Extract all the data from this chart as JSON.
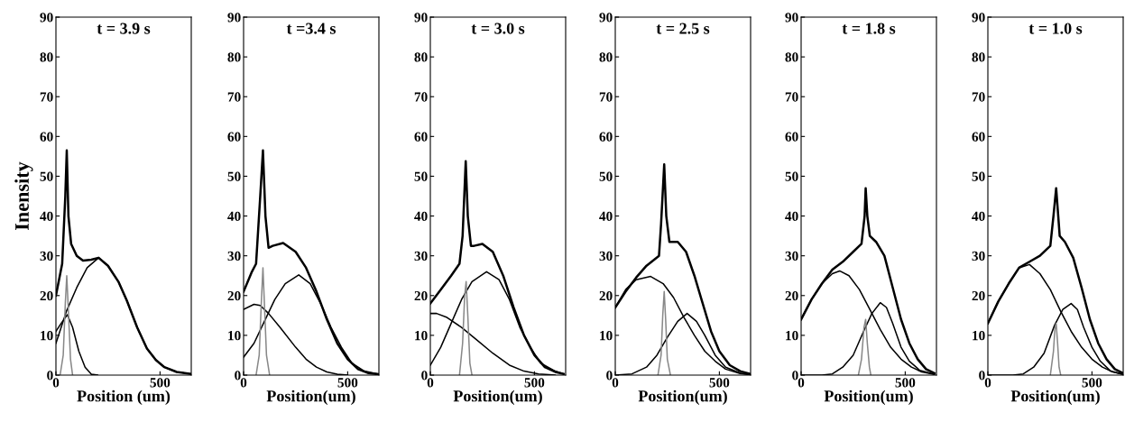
{
  "chart_data": [
    {
      "type": "line",
      "title": "t = 3.9 s",
      "xlabel": "Position (um)",
      "ylabel": "Inensity",
      "xlim": [
        0,
        650
      ],
      "xticks": [
        0,
        500
      ],
      "ylim": [
        0,
        90
      ],
      "yticks": [
        0,
        10,
        20,
        30,
        40,
        50,
        60,
        70,
        80,
        90
      ],
      "grid": false,
      "series": [
        {
          "color": "#000000",
          "x": [
            0,
            30,
            45,
            52,
            60,
            73,
            100,
            130,
            170,
            205,
            250,
            300,
            340,
            390,
            437,
            480,
            521,
            580,
            650
          ],
          "values": [
            20,
            28,
            45,
            56.5,
            40,
            33,
            30,
            28.8,
            29,
            29.5,
            27.5,
            23.5,
            18.8,
            12,
            6.7,
            3.8,
            2,
            0.8,
            0.3
          ]
        },
        {
          "color": "#000000",
          "x": [
            0,
            25,
            55,
            80,
            110,
            140,
            170,
            200
          ],
          "values": [
            11,
            13,
            15.2,
            12,
            6,
            2,
            0.2,
            0
          ]
        },
        {
          "color": "#000000",
          "x": [
            0,
            50,
            100,
            150,
            205,
            250,
            300,
            340,
            390,
            437,
            480,
            521,
            580,
            650
          ],
          "values": [
            8,
            16,
            22,
            27,
            29.5,
            27.5,
            23.5,
            18.8,
            12,
            6.7,
            3.8,
            2,
            0.8,
            0.3
          ]
        },
        {
          "color": "#888888",
          "x": [
            20,
            35,
            45,
            52,
            60,
            70,
            80
          ],
          "values": [
            0,
            5,
            18,
            25,
            16,
            4,
            0
          ]
        }
      ]
    },
    {
      "type": "line",
      "title": "t =3.4 s",
      "xlabel": "Position(um)",
      "xlim": [
        0,
        650
      ],
      "xticks": [
        0,
        500
      ],
      "ylim": [
        0,
        90
      ],
      "yticks": [
        0,
        10,
        20,
        30,
        40,
        50,
        60,
        70,
        80,
        90
      ],
      "grid": false,
      "series": [
        {
          "color": "#000000",
          "x": [
            0,
            40,
            60,
            80,
            93,
            105,
            120,
            140,
            190,
            250,
            300,
            350,
            400,
            450,
            500,
            550,
            600,
            650
          ],
          "values": [
            21,
            26,
            28,
            45,
            56.5,
            40,
            32,
            32.5,
            33.2,
            31,
            27,
            21,
            14,
            8,
            4,
            1.5,
            0.5,
            0.2
          ]
        },
        {
          "color": "#000000",
          "x": [
            0,
            50,
            80,
            120,
            175,
            250,
            300,
            350,
            400,
            450,
            500
          ],
          "values": [
            16.5,
            17.8,
            17.5,
            15.5,
            12,
            7,
            4,
            2,
            0.8,
            0.2,
            0
          ]
        },
        {
          "color": "#000000",
          "x": [
            0,
            50,
            100,
            150,
            200,
            265,
            320,
            370,
            420,
            470,
            520,
            580,
            650
          ],
          "values": [
            4.5,
            8,
            13.5,
            19,
            23,
            25.2,
            23,
            18,
            12,
            7,
            3,
            1,
            0.2
          ]
        },
        {
          "color": "#888888",
          "x": [
            60,
            75,
            85,
            93,
            100,
            110,
            125
          ],
          "values": [
            0,
            5,
            18,
            27,
            18,
            5,
            0
          ]
        }
      ]
    },
    {
      "type": "line",
      "title": "t = 3.0 s",
      "xlabel": "Position(um)",
      "xlim": [
        0,
        650
      ],
      "xticks": [
        0,
        500
      ],
      "ylim": [
        0,
        90
      ],
      "yticks": [
        0,
        10,
        20,
        30,
        40,
        50,
        60,
        70,
        80,
        90
      ],
      "grid": false,
      "series": [
        {
          "color": "#000000",
          "x": [
            0,
            50,
            100,
            140,
            155,
            170,
            180,
            195,
            210,
            250,
            300,
            350,
            400,
            450,
            500,
            550,
            600,
            640
          ],
          "values": [
            18,
            21.5,
            25,
            28,
            35,
            53.8,
            40,
            32.5,
            32.5,
            33,
            31,
            25,
            17,
            10,
            5,
            2,
            0.8,
            0.3
          ]
        },
        {
          "color": "#000000",
          "x": [
            0,
            30,
            80,
            150,
            220,
            300,
            380,
            450,
            520,
            600
          ],
          "values": [
            15.5,
            15.5,
            14.5,
            12,
            9,
            5.5,
            2.5,
            1,
            0.3,
            0
          ]
        },
        {
          "color": "#000000",
          "x": [
            0,
            50,
            100,
            150,
            200,
            270,
            330,
            380,
            430,
            480,
            530,
            600,
            640
          ],
          "values": [
            2.5,
            7,
            13,
            19,
            23.5,
            26,
            24,
            19,
            12,
            7,
            3,
            1,
            0.3
          ]
        },
        {
          "color": "#888888",
          "x": [
            140,
            155,
            165,
            172,
            180,
            190,
            200
          ],
          "values": [
            0,
            8,
            20,
            23.5,
            15,
            3,
            0
          ]
        }
      ]
    },
    {
      "type": "line",
      "title": "t = 2.5 s",
      "xlabel": "Position(um)",
      "xlim": [
        0,
        650
      ],
      "xticks": [
        0,
        500
      ],
      "ylim": [
        0,
        90
      ],
      "yticks": [
        0,
        10,
        20,
        30,
        40,
        50,
        60,
        70,
        80,
        90
      ],
      "grid": false,
      "series": [
        {
          "color": "#000000",
          "x": [
            0,
            50,
            100,
            150,
            210,
            220,
            235,
            245,
            260,
            300,
            340,
            380,
            420,
            460,
            500,
            550,
            600,
            650
          ],
          "values": [
            17,
            21,
            24.5,
            27.5,
            30,
            38,
            53,
            40,
            33.5,
            33.5,
            31,
            25,
            18,
            11,
            6,
            2.5,
            1,
            0.3
          ]
        },
        {
          "color": "#000000",
          "x": [
            0,
            50,
            100,
            170,
            230,
            280,
            330,
            380,
            430,
            480,
            530,
            600,
            650
          ],
          "values": [
            17,
            21.5,
            24,
            24.8,
            23,
            19.5,
            14.5,
            10,
            6,
            3.5,
            1.5,
            0.4,
            0.1
          ]
        },
        {
          "color": "#000000",
          "x": [
            0,
            80,
            150,
            200,
            250,
            300,
            345,
            390,
            430,
            480,
            530,
            600,
            650
          ],
          "values": [
            0,
            0.3,
            2,
            5,
            9.5,
            13.5,
            15.5,
            13.5,
            10,
            5,
            2,
            0.5,
            0.1
          ]
        },
        {
          "color": "#888888",
          "x": [
            205,
            220,
            228,
            235,
            242,
            250,
            265
          ],
          "values": [
            0,
            5,
            15,
            21,
            14,
            4,
            0
          ]
        }
      ]
    },
    {
      "type": "line",
      "title": "t = 1.8 s",
      "xlabel": "Position(um)",
      "xlim": [
        0,
        650
      ],
      "xticks": [
        0,
        500
      ],
      "ylim": [
        0,
        90
      ],
      "yticks": [
        0,
        10,
        20,
        30,
        40,
        50,
        60,
        70,
        80,
        90
      ],
      "grid": false,
      "series": [
        {
          "color": "#000000",
          "x": [
            0,
            50,
            100,
            150,
            200,
            250,
            290,
            305,
            310,
            318,
            330,
            360,
            400,
            440,
            480,
            520,
            560,
            600,
            640
          ],
          "values": [
            14,
            19,
            23,
            26.5,
            28.5,
            31,
            33,
            40,
            47,
            40,
            35,
            33.5,
            30,
            22,
            14,
            8,
            4,
            1.5,
            0.5
          ]
        },
        {
          "color": "#000000",
          "x": [
            0,
            50,
            100,
            150,
            185,
            230,
            280,
            330,
            380,
            430,
            480,
            530,
            580,
            640
          ],
          "values": [
            14,
            19,
            23,
            25.5,
            26.2,
            25,
            21.5,
            16.5,
            11.5,
            7,
            4,
            2,
            0.8,
            0.2
          ]
        },
        {
          "color": "#000000",
          "x": [
            0,
            100,
            150,
            200,
            250,
            300,
            340,
            380,
            410,
            440,
            480,
            520,
            570,
            640
          ],
          "values": [
            0,
            0,
            0.3,
            2,
            5,
            11,
            15.5,
            18.2,
            17,
            13,
            7,
            3.5,
            1.2,
            0.2
          ]
        },
        {
          "color": "#888888",
          "x": [
            275,
            290,
            302,
            310,
            318,
            328,
            335
          ],
          "values": [
            0,
            4,
            12,
            14,
            8,
            2,
            0
          ]
        }
      ]
    },
    {
      "type": "line",
      "title": "t = 1.0 s",
      "xlabel": "Position(um)",
      "xlim": [
        0,
        650
      ],
      "xticks": [
        0,
        500
      ],
      "ylim": [
        0,
        90
      ],
      "yticks": [
        0,
        10,
        20,
        30,
        40,
        50,
        60,
        70,
        80,
        90
      ],
      "grid": false,
      "series": [
        {
          "color": "#000000",
          "x": [
            0,
            50,
            100,
            150,
            200,
            250,
            300,
            315,
            328,
            338,
            345,
            370,
            410,
            450,
            490,
            530,
            570,
            610,
            650
          ],
          "values": [
            13,
            18.5,
            23,
            27,
            28.5,
            30,
            32.5,
            40,
            47,
            40,
            35,
            33.5,
            29.5,
            22,
            14,
            8,
            4,
            1.5,
            0.5
          ]
        },
        {
          "color": "#000000",
          "x": [
            0,
            50,
            100,
            150,
            200,
            250,
            300,
            350,
            400,
            450,
            500,
            550,
            600,
            650
          ],
          "values": [
            13,
            18.5,
            23,
            27,
            27.8,
            25.5,
            21.5,
            16,
            11,
            7,
            4,
            2,
            0.8,
            0.2
          ]
        },
        {
          "color": "#000000",
          "x": [
            0,
            120,
            170,
            220,
            270,
            320,
            360,
            400,
            430,
            460,
            500,
            540,
            590,
            650
          ],
          "values": [
            0,
            0,
            0.3,
            2,
            5.5,
            12.5,
            16.5,
            18,
            16.5,
            12,
            7,
            3.5,
            1,
            0.2
          ]
        },
        {
          "color": "#888888",
          "x": [
            300,
            315,
            322,
            328,
            335,
            342,
            350
          ],
          "values": [
            0,
            6,
            11.5,
            13,
            8,
            2,
            0
          ]
        }
      ]
    }
  ]
}
